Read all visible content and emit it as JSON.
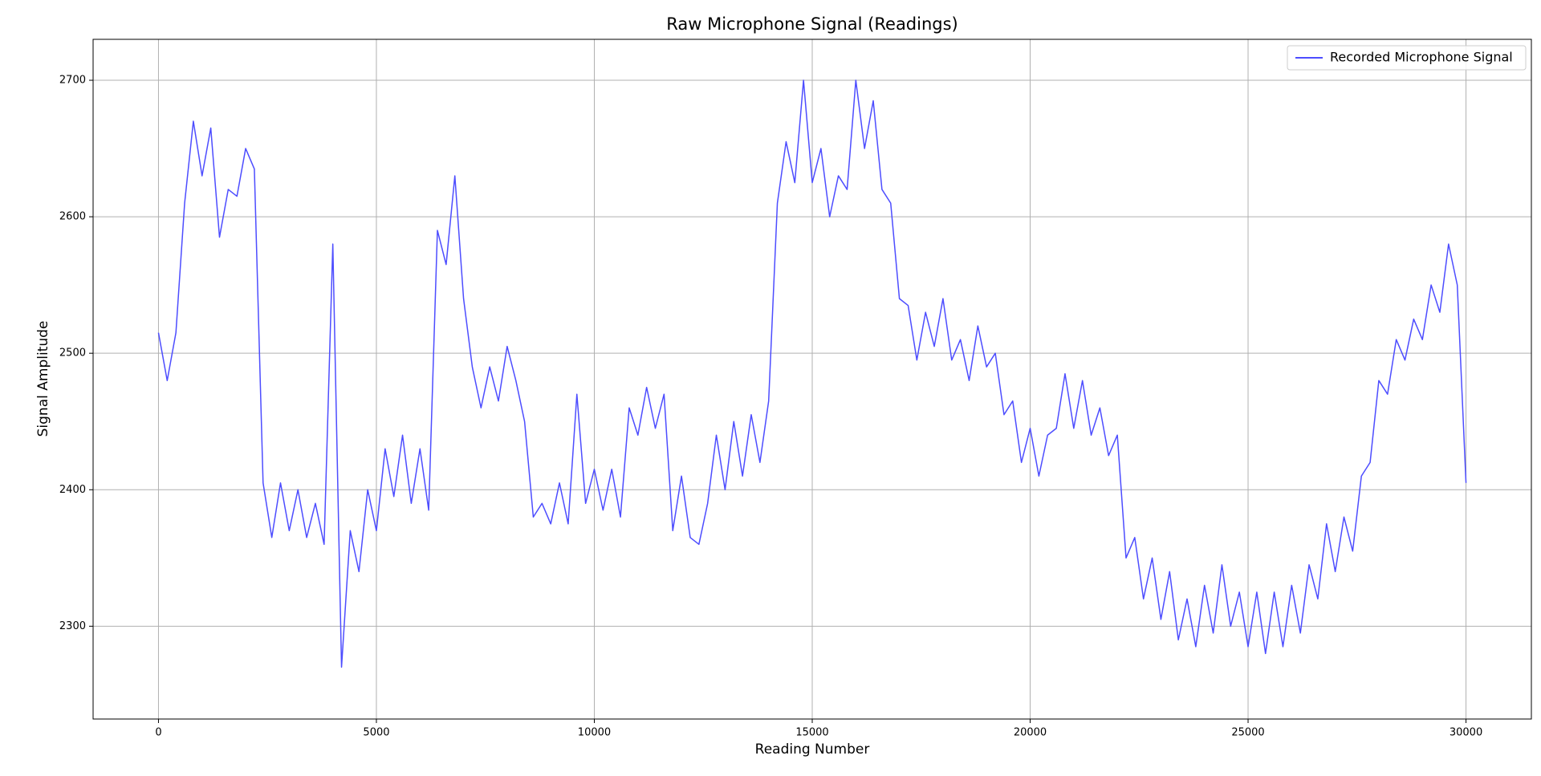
{
  "chart_data": {
    "type": "line",
    "title": "Raw Microphone Signal (Readings)",
    "x_label": "Reading Number",
    "y_label": "Signal Amplitude",
    "x": [
      0,
      200,
      400,
      600,
      800,
      1000,
      1200,
      1400,
      1600,
      1800,
      2000,
      2200,
      2400,
      2600,
      2800,
      3000,
      3200,
      3400,
      3600,
      3800,
      4000,
      4200,
      4400,
      4600,
      4800,
      5000,
      5200,
      5400,
      5600,
      5800,
      6000,
      6200,
      6400,
      6600,
      6800,
      7000,
      7200,
      7400,
      7600,
      7800,
      8000,
      8200,
      8400,
      8600,
      8800,
      9000,
      9200,
      9400,
      9600,
      9800,
      10000,
      10200,
      10400,
      10600,
      10800,
      11000,
      11200,
      11400,
      11600,
      11800,
      12000,
      12200,
      12400,
      12600,
      12800,
      13000,
      13200,
      13400,
      13600,
      13800,
      14000,
      14200,
      14400,
      14600,
      14800,
      15000,
      15200,
      15400,
      15600,
      15800,
      16000,
      16200,
      16400,
      16600,
      16800,
      17000,
      17200,
      17400,
      17600,
      17800,
      18000,
      18200,
      18400,
      18600,
      18800,
      19000,
      19200,
      19400,
      19600,
      19800,
      20000,
      20200,
      20400,
      20600,
      20800,
      21000,
      21200,
      21400,
      21600,
      21800,
      22000,
      22200,
      22400,
      22600,
      22800,
      23000,
      23200,
      23400,
      23600,
      23800,
      24000,
      24200,
      24400,
      24600,
      24800,
      25000,
      25200,
      25400,
      25600,
      25800,
      26000,
      26200,
      26400,
      26600,
      26800,
      27000,
      27200,
      27400,
      27600,
      27800,
      28000,
      28200,
      28400,
      28600,
      28800,
      29000,
      29200,
      29400,
      29600,
      29800,
      30000
    ],
    "series": [
      {
        "name": "Recorded Microphone Signal",
        "color": "#4d4dff",
        "values": [
          2515,
          2480,
          2515,
          2610,
          2670,
          2630,
          2665,
          2585,
          2620,
          2615,
          2650,
          2635,
          2405,
          2365,
          2405,
          2370,
          2400,
          2365,
          2390,
          2360,
          2580,
          2270,
          2370,
          2340,
          2400,
          2370,
          2430,
          2395,
          2440,
          2390,
          2430,
          2385,
          2590,
          2565,
          2630,
          2540,
          2490,
          2460,
          2490,
          2465,
          2505,
          2480,
          2450,
          2380,
          2390,
          2375,
          2405,
          2375,
          2470,
          2390,
          2415,
          2385,
          2415,
          2380,
          2460,
          2440,
          2475,
          2445,
          2470,
          2370,
          2410,
          2365,
          2360,
          2390,
          2440,
          2400,
          2450,
          2410,
          2455,
          2420,
          2465,
          2610,
          2655,
          2625,
          2700,
          2625,
          2650,
          2600,
          2630,
          2620,
          2700,
          2650,
          2685,
          2620,
          2610,
          2540,
          2535,
          2495,
          2530,
          2505,
          2540,
          2495,
          2510,
          2480,
          2520,
          2490,
          2500,
          2455,
          2465,
          2420,
          2445,
          2410,
          2440,
          2445,
          2485,
          2445,
          2480,
          2440,
          2460,
          2425,
          2440,
          2350,
          2365,
          2320,
          2350,
          2305,
          2340,
          2290,
          2320,
          2285,
          2330,
          2295,
          2345,
          2300,
          2325,
          2285,
          2325,
          2280,
          2325,
          2285,
          2330,
          2295,
          2345,
          2320,
          2375,
          2340,
          2380,
          2355,
          2410,
          2420,
          2480,
          2470,
          2510,
          2495,
          2525,
          2510,
          2550,
          2530,
          2580,
          2550,
          2405
        ]
      }
    ],
    "xlim": [
      -1500,
      31500
    ],
    "ylim": [
      2232,
      2730
    ],
    "xticks": [
      0,
      5000,
      10000,
      15000,
      20000,
      25000,
      30000
    ],
    "yticks": [
      2300,
      2400,
      2500,
      2600,
      2700
    ],
    "grid": true,
    "legend": "upper right"
  }
}
